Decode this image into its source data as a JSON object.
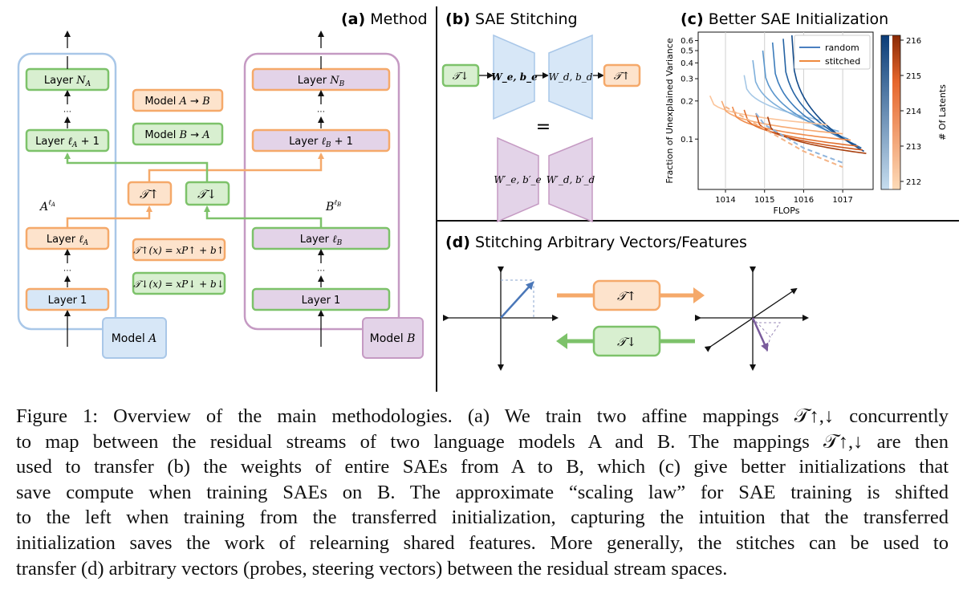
{
  "panel_a": {
    "title_bold": "(a)",
    "title_text": "Method",
    "model_a": {
      "layers": [
        "Layer N",
        "Layer ℓ",
        "Layer ℓ",
        "Layer 1"
      ],
      "top_layer_label": "Layer N_A",
      "upper_layer_label": "Layer ℓ_A + 1",
      "lower_layer_label": "Layer ℓ_A",
      "bottom_layer_label": "Layer 1",
      "ellipsis": "⋯",
      "activation_label": "A^{ℓ_A}",
      "model_tag": "Model A"
    },
    "model_b": {
      "top_layer_label": "Layer N_B",
      "upper_layer_label": "Layer ℓ_B + 1",
      "lower_layer_label": "Layer ℓ_B",
      "bottom_layer_label": "Layer 1",
      "ellipsis": "⋯",
      "activation_label": "B^{ℓ_B}",
      "model_tag": "Model B"
    },
    "legend": {
      "a_to_b": "Model A → B",
      "b_to_a": "Model B → A"
    },
    "t_up": "𝒯↑",
    "t_down": "𝒯↓",
    "eq_up": "𝒯↑(x) = xP↑ + b↑",
    "eq_down": "𝒯↓(x) = xP↓ + b↓"
  },
  "panel_b": {
    "title_bold": "(b)",
    "title_text": "SAE Stitching",
    "t_down": "𝒯↓",
    "t_up": "𝒯↑",
    "enc": "W_e, b_e",
    "dec": "W_d, b_d",
    "equals": "=",
    "enc_prime": "W′_e, b′_e",
    "dec_prime": "W′_d, b′_d"
  },
  "panel_c": {
    "title_bold": "(c)",
    "title_text": "Better SAE Initialization"
  },
  "panel_d": {
    "title_bold": "(d)",
    "title_text": "Stitching Arbitrary Vectors/Features",
    "t_up": "𝒯↑",
    "t_down": "𝒯↓"
  },
  "colors": {
    "orange": "#f5a96a",
    "orange_fill": "#fde3cc",
    "green": "#7dc26a",
    "green_fill": "#d8efd0",
    "blue_edge": "#a9c7e8",
    "blue_fill": "#d7e7f7",
    "purple_edge": "#c59ac3",
    "purple_fill": "#e3d3e8",
    "vec_blue": "#4a77b8",
    "vec_purple": "#7a5c9c"
  },
  "caption": {
    "lines": [
      "Figure 1: Overview of the main methodologies. (a) We train two affine mappings 𝒯↑,↓ concurrently",
      "to map between the residual streams of two language models A and B. The mappings 𝒯↑,↓ are then",
      "used to transfer (b) the weights of entire SAEs from A to B, which (c) give better initializations that",
      "save compute when training SAEs on B. The approximate “scaling law” for SAE training is shifted",
      "to the left when training from the transferred initialization, capturing the intuition that the transferred",
      "initialization saves the work of relearning shared features. More generally, the stitches can be used to",
      "transfer (d) arbitrary vectors (probes, steering vectors) between the residual stream spaces."
    ]
  },
  "chart_data": {
    "type": "line",
    "title": "(c) Better SAE Initialization",
    "xlabel": "FLOPs",
    "ylabel": "Fraction of Unexplained Variance",
    "x_scale": "log",
    "y_scale": "log",
    "xlim": [
      20000000000000.0,
      6e+17
    ],
    "ylim": [
      0.04,
      0.7
    ],
    "x_ticks": [
      "10^14",
      "10^15",
      "10^16",
      "10^17"
    ],
    "y_ticks": [
      "0.6",
      "0.5",
      "0.4",
      "0.3",
      "0.2",
      "0.1"
    ],
    "grid": "vertical",
    "legend": {
      "placement": "top-right",
      "entries": [
        "random",
        "stitched"
      ]
    },
    "colorbar": {
      "label": "# Of Latents",
      "ticks": [
        "2^12",
        "2^13",
        "2^14",
        "2^15",
        "2^16"
      ]
    },
    "series": [
      {
        "name": "random",
        "points": [
          [
            600000000000000.0,
            0.16
          ],
          [
            1000000000000000.0,
            0.13
          ],
          [
            1e+16,
            0.085
          ],
          [
            1e+17,
            0.065
          ]
        ]
      },
      {
        "name": "stitched",
        "points": [
          [
            100000000000000.0,
            0.18
          ],
          [
            1000000000000000.0,
            0.12
          ],
          [
            1e+16,
            0.08
          ],
          [
            1e+17,
            0.06
          ]
        ]
      }
    ]
  }
}
